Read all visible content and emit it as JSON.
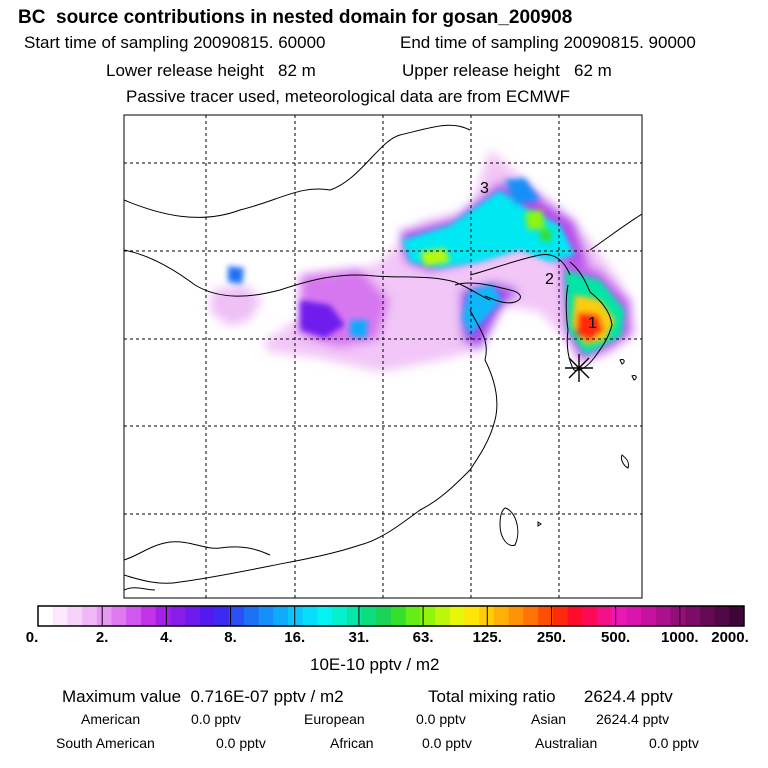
{
  "title": "BC  source contributions in nested domain for gosan_200908",
  "sampling": {
    "start_label": "Start time of sampling 20090815. 60000",
    "end_label": "End time of sampling 20090815. 90000"
  },
  "release": {
    "lower_label": "Lower release height   82 m",
    "upper_label": "Upper release height   62 m"
  },
  "note": "Passive tracer used, meteorological data are from ECMWF",
  "map": {
    "markers": [
      "1",
      "2",
      "3"
    ],
    "receptor_icon": "star-cross-icon",
    "land_line_color": "#000000",
    "gridline_style": "dashed"
  },
  "colorbar": {
    "ticks": [
      "0.",
      "2.",
      "4.",
      "8.",
      "16.",
      "31.",
      "63.",
      "125.",
      "250.",
      "500.",
      "1000.",
      "2000."
    ],
    "unit": "10E-10 pptv / m2",
    "colors": [
      "#ffffff",
      "#fbe8fc",
      "#f6d2fa",
      "#f0b8f8",
      "#e999f5",
      "#df79f2",
      "#d257ef",
      "#c233ea",
      "#a61fe8",
      "#8a1cea",
      "#6f1aed",
      "#5418f0",
      "#3d2af2",
      "#2a4ff4",
      "#1c70f6",
      "#1690f8",
      "#10abfa",
      "#0cc6fb",
      "#07defb",
      "#04f2f0",
      "#04f0cf",
      "#06e6a6",
      "#0bdc7c",
      "#1ad254",
      "#35e02c",
      "#62ee16",
      "#90f40c",
      "#bcf70a",
      "#e6f70a",
      "#ffe608",
      "#ffcc08",
      "#ffb007",
      "#ff9206",
      "#ff7206",
      "#ff4e06",
      "#ff2a0c",
      "#ff0c2c",
      "#fc0a58",
      "#f5108a",
      "#eb18b4",
      "#d915ae",
      "#c4129e",
      "#ac108c",
      "#940e7a",
      "#7c0c68",
      "#660a56",
      "#520846",
      "#3e0636"
    ]
  },
  "stats": {
    "max_label": "Maximum value  0.716E-07 pptv / m2",
    "total_label": "Total mixing ratio      2624.4 pptv"
  },
  "sources": [
    {
      "name": "American",
      "value": "0.0 pptv"
    },
    {
      "name": "European",
      "value": "0.0 pptv"
    },
    {
      "name": "Asian",
      "value": "2624.4 pptv"
    },
    {
      "name": "South American",
      "value": "0.0 pptv"
    },
    {
      "name": "African",
      "value": "0.0 pptv"
    },
    {
      "name": "Australian",
      "value": "0.0 pptv"
    }
  ]
}
